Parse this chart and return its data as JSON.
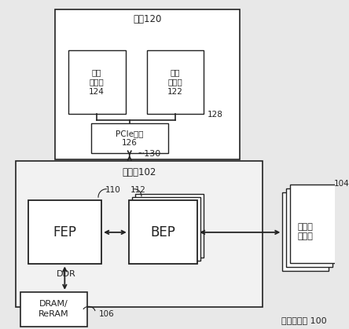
{
  "bg_color": "#e8e8e8",
  "white": "#ffffff",
  "dark": "#222222",
  "title": "存储器系统 100",
  "host_label": "主机120",
  "host_mem_label": "主机\n存储器\n124",
  "host_proc_label": "主机\n处理器\n122",
  "pcie_label": "PCIe接口\n126",
  "ctrl_label": "控制器102",
  "fep_label": "FEP",
  "bep_label": "BEP",
  "mem_pkg_label": "存储器\n封装件",
  "dram_label": "DRAM/\nReRAM",
  "label_110": "110",
  "label_112": "112",
  "label_104": "104",
  "label_106": "106",
  "label_128": "128",
  "label_130": "~130",
  "label_ddr": "DDR"
}
